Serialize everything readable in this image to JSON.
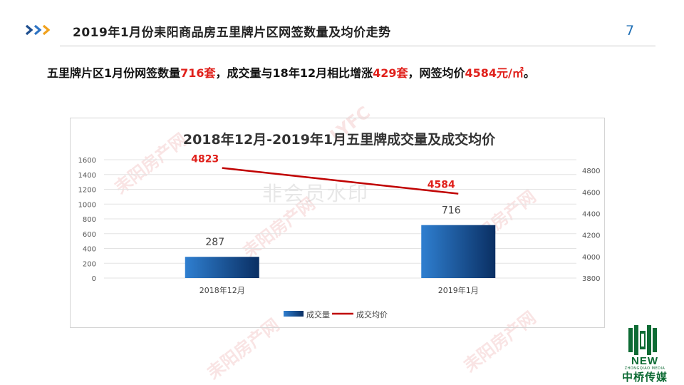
{
  "header": {
    "title": "2019年1月份耒阳商品房五里牌片区网签数量及均价走势",
    "page_number": "7",
    "chevron_colors": [
      "#1f4f8f",
      "#2e74c4",
      "#f0a11c"
    ]
  },
  "summary": {
    "part1": "五里牌片区1月份网签数量",
    "count": "716套",
    "part2": "，成交量与18年12月相比增涨",
    "increase": "429套",
    "part3": "，网签均价",
    "price": "4584元/㎡",
    "part4": "。"
  },
  "watermark": {
    "brand": "耒阳房产网",
    "abbrev": "LYFC",
    "center_text": "非会员水印"
  },
  "logo": {
    "en": "NEW",
    "sub": "ZHONGQIAO MEDIA",
    "cn": "中桥传媒"
  },
  "colors": {
    "accent_red": "#e0201b",
    "line_red": "#c00000",
    "bar_blue_light": "#2f7fd0",
    "bar_blue_dark": "#0a2f63",
    "logo_green": "#0d6b34"
  },
  "chart_data": {
    "type": "bar",
    "title": "2018年12月-2019年1月五里牌成交量及成交均价",
    "categories": [
      "2018年12月",
      "2019年1月"
    ],
    "series": [
      {
        "name": "成交量",
        "type": "bar",
        "axis": "left",
        "values": [
          287,
          716
        ],
        "labels": [
          "287",
          "716"
        ]
      },
      {
        "name": "成交均价",
        "type": "line",
        "axis": "right",
        "values": [
          4823,
          4584
        ],
        "labels": [
          "4823",
          "4584"
        ]
      }
    ],
    "y_left": {
      "ylim": [
        0,
        1600
      ],
      "ticks": [
        "0",
        "200",
        "400",
        "600",
        "800",
        "1000",
        "1200",
        "1400",
        "1600"
      ]
    },
    "y_right": {
      "ylim": [
        3800,
        4900
      ],
      "ticks": [
        "3800",
        "4000",
        "4200",
        "4400",
        "4600",
        "4800"
      ]
    },
    "grid": true,
    "legend_position": "bottom"
  }
}
